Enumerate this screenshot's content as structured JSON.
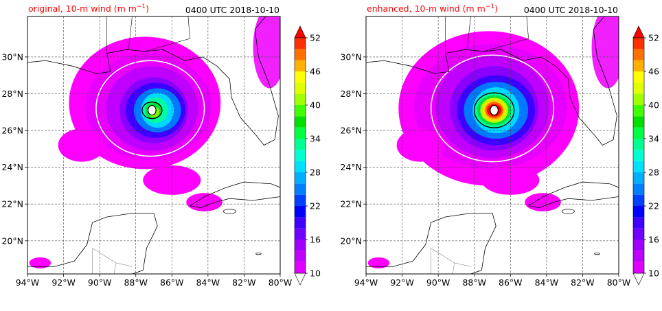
{
  "chart_data": [
    {
      "type": "heatmap",
      "title_left": "original, 10-m wind (m m",
      "title_left_sup": "−1",
      "title_left_close": ")",
      "title_right": "0400 UTC 2018-10-10",
      "xlim": [
        -94,
        -80
      ],
      "ylim": [
        18.2,
        32.2
      ],
      "x_ticks": [
        -94,
        -92,
        -90,
        -88,
        -86,
        -84,
        -82,
        -80
      ],
      "y_ticks": [
        20,
        22,
        24,
        26,
        28,
        30
      ],
      "x_tick_labels": [
        "94°W",
        "92°W",
        "90°W",
        "88°W",
        "86°W",
        "84°W",
        "82°W",
        "80°W"
      ],
      "y_tick_labels": [
        "20°N",
        "22°N",
        "24°N",
        "26°N",
        "28°N",
        "30°N"
      ],
      "grid": true,
      "storm_center": {
        "lon": -87.1,
        "lat": 27.1
      },
      "wind_field_levels": [
        {
          "rx": 4.2,
          "ry": 3.6,
          "dx": -0.4,
          "dy": 0.4,
          "value": 10,
          "color": "#ff00ff"
        },
        {
          "rx": 3.3,
          "ry": 2.9,
          "dx": -0.2,
          "dy": 0.2,
          "value": 12,
          "color": "#e800ff"
        },
        {
          "rx": 2.6,
          "ry": 2.3,
          "dx": 0.0,
          "dy": 0.1,
          "value": 14,
          "color": "#c000ff"
        },
        {
          "rx": 2.0,
          "ry": 1.8,
          "dx": 0.1,
          "dy": 0.0,
          "value": 16,
          "color": "#8a00ff"
        },
        {
          "rx": 1.6,
          "ry": 1.5,
          "dx": 0.2,
          "dy": 0.0,
          "value": 19,
          "color": "#3c00ff"
        },
        {
          "rx": 1.25,
          "ry": 1.2,
          "dx": 0.3,
          "dy": 0.0,
          "value": 22,
          "color": "#0078ff"
        },
        {
          "rx": 0.95,
          "ry": 0.95,
          "dx": 0.3,
          "dy": 0.0,
          "value": 26,
          "color": "#00d8ff"
        },
        {
          "rx": 0.7,
          "ry": 0.7,
          "dx": 0.2,
          "dy": 0.0,
          "value": 30,
          "color": "#00ffa0"
        },
        {
          "rx": 0.45,
          "ry": 0.45,
          "dx": 0.1,
          "dy": 0.0,
          "value": 34,
          "color": "#00e040"
        },
        {
          "rx": 0.3,
          "ry": 0.3,
          "dx": 0.1,
          "dy": -0.1,
          "value": 38,
          "color": "#80ff00"
        }
      ],
      "contour_white": {
        "rx": 3.0,
        "ry": 2.6,
        "dx": -0.1,
        "dy": 0.1
      },
      "contour_black": {
        "rx": 0.55,
        "ry": 0.45,
        "dx": 0.0,
        "dy": 0.0
      }
    },
    {
      "type": "heatmap",
      "title_left": "enhanced, 10-m wind (m m",
      "title_left_sup": "−1",
      "title_left_close": ")",
      "title_right": "0400 UTC 2018-10-10",
      "xlim": [
        -94,
        -80
      ],
      "ylim": [
        18.2,
        32.2
      ],
      "x_ticks": [
        -94,
        -92,
        -90,
        -88,
        -86,
        -84,
        -82,
        -80
      ],
      "y_ticks": [
        20,
        22,
        24,
        26,
        28,
        30
      ],
      "x_tick_labels": [
        "94°W",
        "92°W",
        "90°W",
        "88°W",
        "86°W",
        "84°W",
        "82°W",
        "80°W"
      ],
      "y_tick_labels": [
        "20°N",
        "22°N",
        "24°N",
        "26°N",
        "28°N",
        "30°N"
      ],
      "grid": true,
      "storm_center": {
        "lon": -86.9,
        "lat": 27.1
      },
      "wind_field_levels": [
        {
          "rx": 5.0,
          "ry": 4.2,
          "dx": -0.3,
          "dy": 0.1,
          "value": 10,
          "color": "#ff00ff"
        },
        {
          "rx": 4.0,
          "ry": 3.4,
          "dx": -0.2,
          "dy": 0.2,
          "value": 12,
          "color": "#e800ff"
        },
        {
          "rx": 3.2,
          "ry": 2.8,
          "dx": -0.1,
          "dy": 0.2,
          "value": 14,
          "color": "#c000ff"
        },
        {
          "rx": 2.6,
          "ry": 2.3,
          "dx": 0.0,
          "dy": 0.1,
          "value": 16,
          "color": "#8a00ff"
        },
        {
          "rx": 2.1,
          "ry": 1.9,
          "dx": 0.1,
          "dy": 0.0,
          "value": 19,
          "color": "#3c00ff"
        },
        {
          "rx": 1.7,
          "ry": 1.55,
          "dx": 0.1,
          "dy": 0.0,
          "value": 22,
          "color": "#0078ff"
        },
        {
          "rx": 1.35,
          "ry": 1.25,
          "dx": 0.1,
          "dy": 0.0,
          "value": 26,
          "color": "#00d8ff"
        },
        {
          "rx": 1.1,
          "ry": 1.0,
          "dx": 0.0,
          "dy": 0.0,
          "value": 30,
          "color": "#00ffa0"
        },
        {
          "rx": 0.9,
          "ry": 0.82,
          "dx": 0.0,
          "dy": 0.0,
          "value": 34,
          "color": "#00e040"
        },
        {
          "rx": 0.75,
          "ry": 0.68,
          "dx": 0.0,
          "dy": 0.0,
          "value": 40,
          "color": "#c0ff00"
        },
        {
          "rx": 0.62,
          "ry": 0.56,
          "dx": 0.0,
          "dy": 0.0,
          "value": 44,
          "color": "#ffd000"
        },
        {
          "rx": 0.5,
          "ry": 0.45,
          "dx": 0.0,
          "dy": 0.0,
          "value": 48,
          "color": "#ff6000"
        },
        {
          "rx": 0.38,
          "ry": 0.34,
          "dx": 0.0,
          "dy": 0.0,
          "value": 52,
          "color": "#ff0000"
        }
      ],
      "contour_white": {
        "rx": 3.4,
        "ry": 2.9,
        "dx": -0.1,
        "dy": 0.1
      },
      "contour_black": {
        "rx": 1.1,
        "ry": 0.95,
        "dx": 0.0,
        "dy": 0.0
      }
    }
  ],
  "colorbar": {
    "levels": [
      10,
      12,
      14,
      16,
      18,
      20,
      22,
      24,
      26,
      28,
      30,
      32,
      34,
      36,
      38,
      40,
      42,
      44,
      46,
      48,
      50,
      52
    ],
    "tick_labels": [
      "10",
      "16",
      "22",
      "28",
      "34",
      "40",
      "46",
      "52"
    ],
    "colors": [
      "#ff00ff",
      "#e000ff",
      "#c000ff",
      "#a000ff",
      "#7000ff",
      "#4000ff",
      "#0000ff",
      "#0040ff",
      "#0080ff",
      "#00b0ff",
      "#00e0ff",
      "#00ffd0",
      "#00ff90",
      "#00ff40",
      "#00e000",
      "#40ff00",
      "#a0ff00",
      "#e0ff00",
      "#ffff00",
      "#ffb000",
      "#ff7000",
      "#ff3000",
      "#ff0000"
    ],
    "extend": "both"
  },
  "colors": {
    "land_outline": "#000000",
    "border_outline": "#888888",
    "grid": "#444444"
  }
}
